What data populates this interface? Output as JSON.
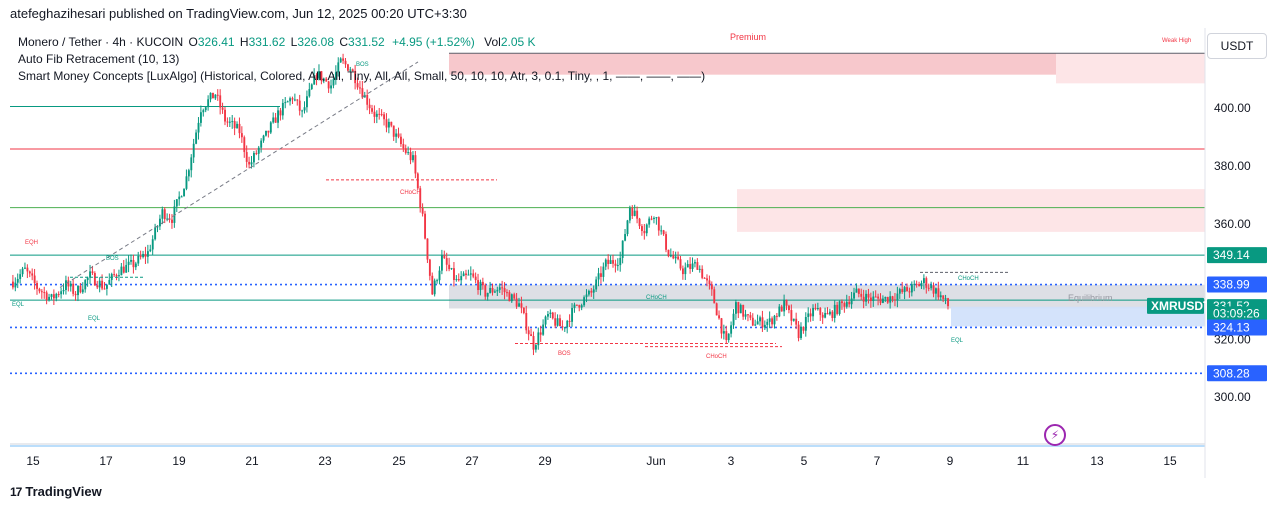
{
  "header": {
    "published_line": "atefeghazihesari published on TradingView.com, Jun 12, 2025 00:20 UTC+3:30"
  },
  "legend": {
    "symbol": "Monero / Tether · 4h · KUCOIN",
    "open_label": "O",
    "open": "326.41",
    "high_label": "H",
    "high": "331.62",
    "low_label": "L",
    "low": "326.08",
    "close_label": "C",
    "close": "331.52",
    "change": "+4.95 (+1.52%)",
    "vol_label": "Vol",
    "vol": "2.05 K",
    "indicator_1": "Auto Fib Retracement (10, 13)",
    "indicator_2": "Smart Money Concepts [LuxAlgo] (Historical, Colored, All, All, Tiny, All, All, Small, 50, 10, 10, Atr, 3, 0.1, Tiny, , 1, ——, ——, ——)"
  },
  "currency": "USDT",
  "footer": {
    "brand": "TradingView",
    "mark": "17"
  },
  "colors": {
    "up": "#089981",
    "down": "#f23645",
    "teal_line": "#089981",
    "red_line": "#f23645",
    "blue_dot": "#2962ff",
    "premium_zone": "#f7c5c9",
    "supply_zone": "#fde2e4",
    "equilibrium_zone": "#d1d4dc",
    "demand_zone": "#cfe0fb",
    "label_dark": "#131722"
  },
  "chart_data": {
    "type": "candlestick",
    "timeframe": "4h",
    "x_ticks": [
      "15",
      "17",
      "19",
      "21",
      "23",
      "25",
      "27",
      "29",
      "Jun",
      "3",
      "5",
      "7",
      "9",
      "11",
      "13",
      "15"
    ],
    "y_ticks": [
      300,
      320,
      340,
      360,
      380,
      400
    ],
    "y_tick_labels": [
      "300.00",
      "320.00",
      "340.00",
      "360.00",
      "380.00",
      "400.00"
    ],
    "ylim": [
      284,
      419
    ],
    "grid": false,
    "price_labels": [
      {
        "text": "349.14",
        "value": 349.14,
        "kind": "teal"
      },
      {
        "text": "338.99",
        "value": 338.99,
        "kind": "blue"
      },
      {
        "text": "XMRUSDT",
        "value": 331.6,
        "kind": "ticker"
      },
      {
        "text": "331.52",
        "value": 331.52,
        "kind": "last"
      },
      {
        "text": "03:09:26",
        "value": 329.0,
        "kind": "countdown"
      },
      {
        "text": "324.13",
        "value": 324.13,
        "kind": "blue"
      },
      {
        "text": "308.28",
        "value": 308.28,
        "kind": "blue"
      }
    ],
    "levels": [
      {
        "value": 400.6,
        "kind": "teal",
        "from": 0,
        "to": "May 21",
        "style": "solid"
      },
      {
        "value": 385.9,
        "kind": "red",
        "style": "solid"
      },
      {
        "value": 365.6,
        "kind": "green",
        "style": "solid"
      },
      {
        "value": 349.14,
        "kind": "teal",
        "style": "solid"
      },
      {
        "value": 338.99,
        "kind": "blue",
        "style": "dotted"
      },
      {
        "value": 324.13,
        "kind": "blue",
        "style": "dotted"
      },
      {
        "value": 308.28,
        "kind": "blue",
        "style": "dotted"
      },
      {
        "value": 333.6,
        "kind": "teal",
        "style": "solid"
      }
    ],
    "zones": [
      {
        "name": "Premium",
        "from": "May 26 01:00",
        "to": "Jun 11 06:00",
        "low": 411.6,
        "high": 419,
        "color": "premium"
      },
      {
        "name": "Weak High",
        "from": "Jun 11 06:00",
        "to": "end",
        "low": 408.6,
        "high": 419,
        "color": "supply"
      },
      {
        "name": "supply",
        "from": "Jun 3 01:00",
        "to": "end",
        "low": 357.2,
        "high": 372.0,
        "color": "supply"
      },
      {
        "name": "Equilibrium",
        "from": "May 27 12:00",
        "to": "end",
        "low": 330.7,
        "high": 338.9,
        "color": "equilibrium"
      },
      {
        "name": "demand",
        "from": "Jun 10 12:00",
        "to": "end",
        "low": 324.5,
        "high": 331.3,
        "color": "demand"
      }
    ],
    "structure_labels": [
      {
        "text": "Premium",
        "kind": "red_top"
      },
      {
        "text": "Weak High",
        "kind": "red_top"
      },
      {
        "text": "EQH",
        "kind": "red"
      },
      {
        "text": "EQL",
        "kind": "teal"
      },
      {
        "text": "EQL",
        "kind": "teal"
      },
      {
        "text": "BOS",
        "kind": "teal"
      },
      {
        "text": "BOS",
        "kind": "teal"
      },
      {
        "text": "CHoCH",
        "kind": "red"
      },
      {
        "text": "CHoCH",
        "kind": "teal"
      },
      {
        "text": "BOS",
        "kind": "red"
      },
      {
        "text": "CHoCH",
        "kind": "red"
      },
      {
        "text": "CHoCH",
        "kind": "teal"
      },
      {
        "text": "EQL",
        "kind": "teal"
      },
      {
        "text": "Equilibrium",
        "kind": "grey"
      }
    ],
    "path_knots": [
      [
        0,
        340
      ],
      [
        5,
        344
      ],
      [
        10,
        338
      ],
      [
        16,
        334
      ],
      [
        22,
        339
      ],
      [
        26,
        336
      ],
      [
        32,
        342
      ],
      [
        38,
        338
      ],
      [
        44,
        344
      ],
      [
        50,
        346
      ],
      [
        56,
        350
      ],
      [
        62,
        364
      ],
      [
        66,
        362
      ],
      [
        72,
        376
      ],
      [
        78,
        400
      ],
      [
        84,
        405
      ],
      [
        88,
        396
      ],
      [
        94,
        392
      ],
      [
        98,
        380
      ],
      [
        102,
        386
      ],
      [
        110,
        398
      ],
      [
        116,
        404
      ],
      [
        120,
        398
      ],
      [
        126,
        412
      ],
      [
        132,
        408
      ],
      [
        136,
        416
      ],
      [
        140,
        414
      ],
      [
        146,
        404
      ],
      [
        150,
        398
      ],
      [
        156,
        394
      ],
      [
        162,
        386
      ],
      [
        166,
        382
      ],
      [
        170,
        362
      ],
      [
        174,
        336
      ],
      [
        178,
        348
      ],
      [
        184,
        340
      ],
      [
        190,
        342
      ],
      [
        196,
        336
      ],
      [
        202,
        338
      ],
      [
        210,
        332
      ],
      [
        216,
        318
      ],
      [
        222,
        328
      ],
      [
        228,
        324
      ],
      [
        234,
        332
      ],
      [
        240,
        336
      ],
      [
        246,
        346
      ],
      [
        252,
        348
      ],
      [
        256,
        366
      ],
      [
        262,
        358
      ],
      [
        266,
        364
      ],
      [
        272,
        350
      ],
      [
        278,
        344
      ],
      [
        284,
        346
      ],
      [
        290,
        336
      ],
      [
        296,
        318
      ],
      [
        300,
        332
      ],
      [
        306,
        326
      ],
      [
        314,
        326
      ],
      [
        320,
        332
      ],
      [
        326,
        322
      ],
      [
        332,
        330
      ],
      [
        338,
        328
      ],
      [
        344,
        332
      ],
      [
        350,
        336
      ],
      [
        356,
        334
      ],
      [
        362,
        334
      ],
      [
        368,
        336
      ],
      [
        374,
        338
      ],
      [
        378,
        340
      ],
      [
        384,
        336
      ],
      [
        388,
        331.5
      ]
    ]
  }
}
